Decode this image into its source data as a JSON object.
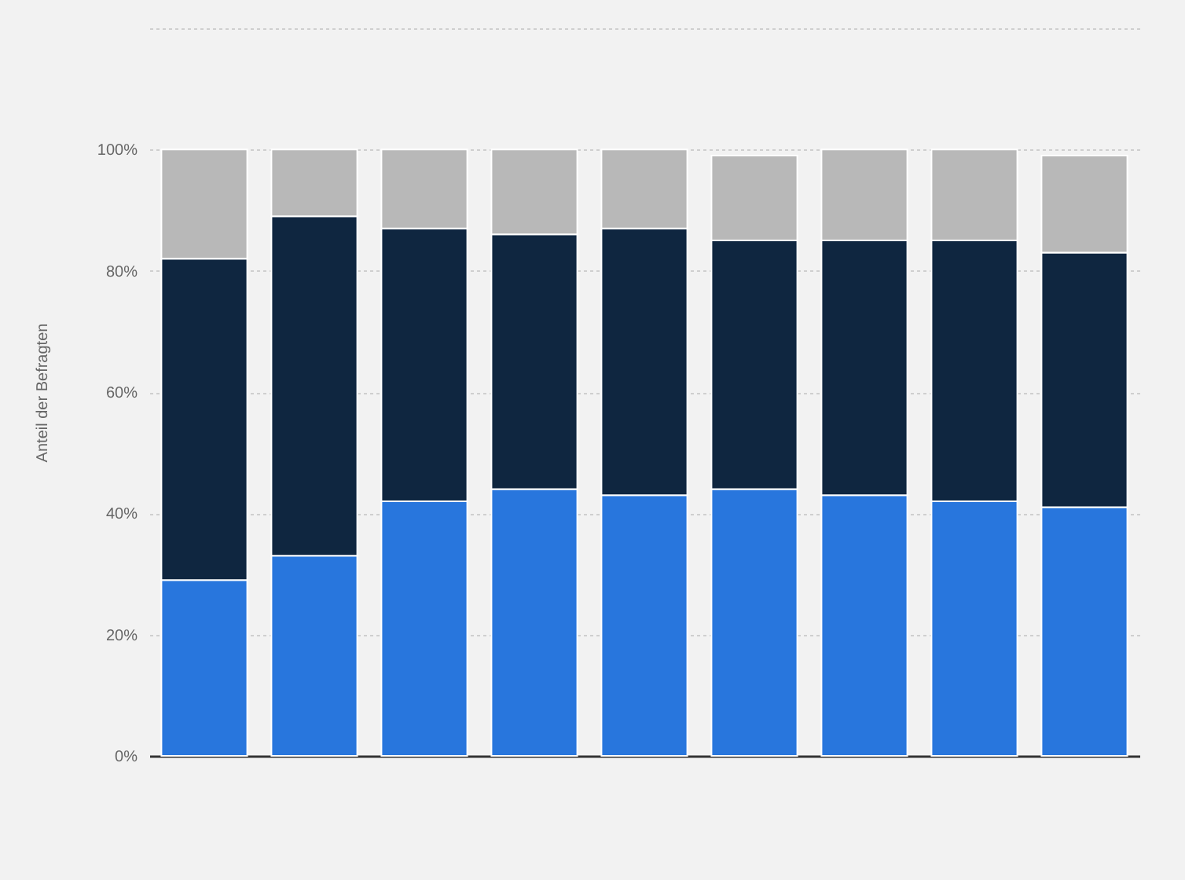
{
  "chart_data": {
    "type": "bar",
    "stacked": true,
    "ylabel": "Anteil der Befragten",
    "categories": [
      null,
      null,
      null,
      null,
      null,
      null,
      null,
      null,
      null
    ],
    "series": [
      {
        "color": "#2876dd",
        "values": [
          29,
          33,
          42,
          44,
          43,
          44,
          43,
          42,
          41
        ]
      },
      {
        "color": "#0f2640",
        "values": [
          53,
          56,
          45,
          42,
          44,
          41,
          42,
          43,
          42
        ]
      },
      {
        "color": "#b8b8b8",
        "values": [
          18,
          11,
          13,
          14,
          13,
          14,
          15,
          15,
          16
        ]
      }
    ],
    "ylim": [
      0,
      120
    ],
    "yticks": [
      {
        "value": 0,
        "label": "0%"
      },
      {
        "value": 20,
        "label": "20%"
      },
      {
        "value": 40,
        "label": "40%"
      },
      {
        "value": 60,
        "label": "60%"
      },
      {
        "value": 80,
        "label": "80%"
      },
      {
        "value": 100,
        "label": "100%"
      },
      {
        "value": 120,
        "label": null
      }
    ],
    "grid": "y",
    "tick_labels": "y"
  }
}
